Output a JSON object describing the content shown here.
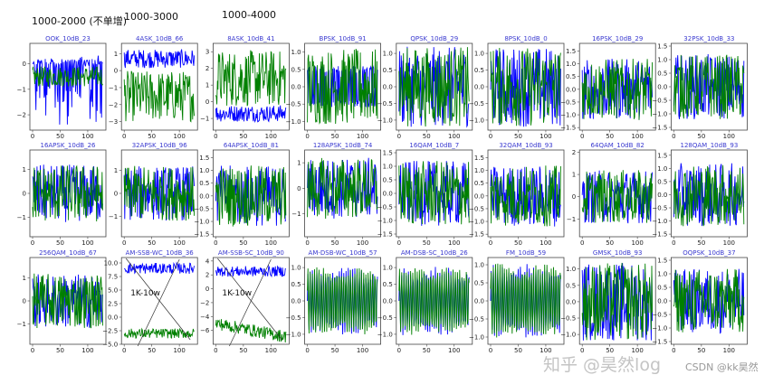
{
  "annotations": {
    "top_notes": [
      "1000-2000 (不单增)",
      "1000-3000",
      "1000-4000"
    ],
    "inline_label": "1K-10w"
  },
  "watermark": {
    "zhihu": "知乎 @昊然log",
    "csdn": "CSDN @kk昊然"
  },
  "colors": {
    "title": "#3a3ad0",
    "series_i": "#0000ff",
    "series_q": "#008000"
  },
  "chart_data": [
    {
      "type": "line",
      "title": "OOK_10dB_23",
      "xlim": [
        0,
        128
      ],
      "xticks": [
        0,
        50,
        100
      ],
      "ylim": [
        -2.6,
        0.8
      ],
      "yticks": [
        -2,
        -1,
        0
      ]
    },
    {
      "type": "line",
      "title": "4ASK_10dB_66",
      "xlim": [
        0,
        128
      ],
      "xticks": [
        0,
        50,
        100
      ],
      "ylim": [
        -3.5,
        1.6
      ],
      "yticks": [
        -3,
        -2,
        -1,
        0,
        1
      ]
    },
    {
      "type": "line",
      "title": "8ASK_10dB_41",
      "xlim": [
        0,
        128
      ],
      "xticks": [
        0,
        50,
        100
      ],
      "ylim": [
        -1.7,
        3.5
      ],
      "yticks": [
        -1,
        0,
        1,
        2,
        3
      ]
    },
    {
      "type": "line",
      "title": "BPSK_10dB_91",
      "xlim": [
        0,
        128
      ],
      "xticks": [
        0,
        50,
        100
      ],
      "ylim": [
        -1.25,
        1.25
      ],
      "yticks": [
        -1.0,
        -0.5,
        0.0,
        0.5,
        1.0
      ]
    },
    {
      "type": "line",
      "title": "QPSK_10dB_29",
      "xlim": [
        0,
        128
      ],
      "xticks": [
        0,
        50,
        100
      ],
      "ylim": [
        -1.3,
        1.3
      ],
      "yticks": [
        -1.0,
        -0.5,
        0.0,
        0.5,
        1.0
      ]
    },
    {
      "type": "line",
      "title": "8PSK_10dB_0",
      "xlim": [
        0,
        128
      ],
      "xticks": [
        0,
        50,
        100
      ],
      "ylim": [
        -1.3,
        1.3
      ],
      "yticks": [
        -1.0,
        -0.5,
        0.0,
        0.5,
        1.0
      ]
    },
    {
      "type": "line",
      "title": "16PSK_10dB_29",
      "xlim": [
        0,
        128
      ],
      "xticks": [
        0,
        50,
        100
      ],
      "ylim": [
        -1.6,
        1.8
      ],
      "yticks": [
        -1.5,
        -1.0,
        -0.5,
        0.0,
        0.5,
        1.0,
        1.5
      ]
    },
    {
      "type": "line",
      "title": "32PSK_10dB_33",
      "xlim": [
        0,
        128
      ],
      "xticks": [
        0,
        50,
        100
      ],
      "ylim": [
        -1.6,
        1.6
      ],
      "yticks": [
        -1.5,
        -1.0,
        -0.5,
        0.0,
        0.5,
        1.0,
        1.5
      ]
    },
    {
      "type": "line",
      "title": "16APSK_10dB_26",
      "xlim": [
        0,
        128
      ],
      "xticks": [
        0,
        50,
        100
      ],
      "ylim": [
        -1.8,
        1.8
      ],
      "yticks": [
        -1,
        0,
        1
      ]
    },
    {
      "type": "line",
      "title": "32APSK_10dB_96",
      "xlim": [
        0,
        128
      ],
      "xticks": [
        0,
        50,
        100
      ],
      "ylim": [
        -1.9,
        1.9
      ],
      "yticks": [
        -1,
        0,
        1
      ]
    },
    {
      "type": "line",
      "title": "64APSK_10dB_81",
      "xlim": [
        0,
        128
      ],
      "xticks": [
        0,
        50,
        100
      ],
      "ylim": [
        -1.6,
        1.8
      ],
      "yticks": [
        -1.5,
        -1.0,
        -0.5,
        0.0,
        0.5,
        1.0,
        1.5
      ]
    },
    {
      "type": "line",
      "title": "128APSK_10dB_74",
      "xlim": [
        0,
        128
      ],
      "xticks": [
        0,
        50,
        100
      ],
      "ylim": [
        -1.9,
        1.5
      ],
      "yticks": [
        -1,
        0,
        1
      ]
    },
    {
      "type": "line",
      "title": "16QAM_10dB_7",
      "xlim": [
        0,
        128
      ],
      "xticks": [
        0,
        50,
        100
      ],
      "ylim": [
        -1.6,
        1.6
      ],
      "yticks": [
        -1.5,
        -1.0,
        -0.5,
        0.0,
        0.5,
        1.0,
        1.5
      ]
    },
    {
      "type": "line",
      "title": "32QAM_10dB_93",
      "xlim": [
        0,
        128
      ],
      "xticks": [
        0,
        50,
        100
      ],
      "ylim": [
        -1.6,
        1.8
      ],
      "yticks": [
        -1.5,
        -1.0,
        -0.5,
        0.0,
        0.5,
        1.0,
        1.5
      ]
    },
    {
      "type": "line",
      "title": "64QAM_10dB_82",
      "xlim": [
        0,
        128
      ],
      "xticks": [
        0,
        50,
        100
      ],
      "ylim": [
        -1.8,
        2.1
      ],
      "yticks": [
        -1,
        0,
        1,
        2
      ]
    },
    {
      "type": "line",
      "title": "128QAM_10dB_93",
      "xlim": [
        0,
        128
      ],
      "xticks": [
        0,
        50,
        100
      ],
      "ylim": [
        -1.6,
        1.7
      ],
      "yticks": [
        -1.5,
        -1.0,
        -0.5,
        0.0,
        0.5,
        1.0,
        1.5
      ]
    },
    {
      "type": "line",
      "title": "256QAM_10dB_67",
      "xlim": [
        0,
        128
      ],
      "xticks": [
        0,
        50,
        100
      ],
      "ylim": [
        -1.9,
        1.9
      ],
      "yticks": [
        -1,
        0,
        1
      ]
    },
    {
      "type": "line",
      "title": "AM-SSB-WC_10dB_36",
      "xlim": [
        0,
        128
      ],
      "xticks": [
        0,
        50,
        100
      ],
      "ylim": [
        -5,
        11
      ],
      "yticks": [
        -5.0,
        -2.5,
        0.0,
        2.5,
        5.0,
        7.5,
        10.0
      ]
    },
    {
      "type": "line",
      "title": "AM-SSB-SC_10dB_90",
      "xlim": [
        0,
        128
      ],
      "xticks": [
        0,
        50,
        100
      ],
      "ylim": [
        -8,
        4.5
      ],
      "yticks": [
        -6,
        -4,
        -2,
        0,
        2,
        4
      ]
    },
    {
      "type": "line",
      "title": "AM-DSB-WC_10dB_57",
      "xlim": [
        0,
        128
      ],
      "xticks": [
        0,
        50,
        100
      ],
      "ylim": [
        -1.3,
        1.3
      ],
      "yticks": [
        -1.0,
        -0.5,
        0.0,
        0.5,
        1.0
      ]
    },
    {
      "type": "line",
      "title": "AM-DSB-SC_10dB_26",
      "xlim": [
        0,
        128
      ],
      "xticks": [
        0,
        50,
        100
      ],
      "ylim": [
        -1.3,
        1.3
      ],
      "yticks": [
        -1.0,
        -0.5,
        0.0,
        0.5,
        1.0
      ]
    },
    {
      "type": "line",
      "title": "FM_10dB_59",
      "xlim": [
        0,
        128
      ],
      "xticks": [
        0,
        50,
        100
      ],
      "ylim": [
        -1.2,
        1.2
      ],
      "yticks": [
        -1.0,
        -0.5,
        0.0,
        0.5,
        1.0
      ]
    },
    {
      "type": "line",
      "title": "GMSK_10dB_93",
      "xlim": [
        0,
        128
      ],
      "xticks": [
        0,
        50,
        100
      ],
      "ylim": [
        -1.3,
        1.35
      ],
      "yticks": [
        -1.0,
        -0.5,
        0.0,
        0.5,
        1.0
      ]
    },
    {
      "type": "line",
      "title": "OQPSK_10dB_37",
      "xlim": [
        0,
        128
      ],
      "xticks": [
        0,
        50,
        100
      ],
      "ylim": [
        -1.6,
        1.6
      ],
      "yticks": [
        -1.5,
        -1.0,
        -0.5,
        0.0,
        0.5,
        1.0,
        1.5
      ]
    }
  ]
}
